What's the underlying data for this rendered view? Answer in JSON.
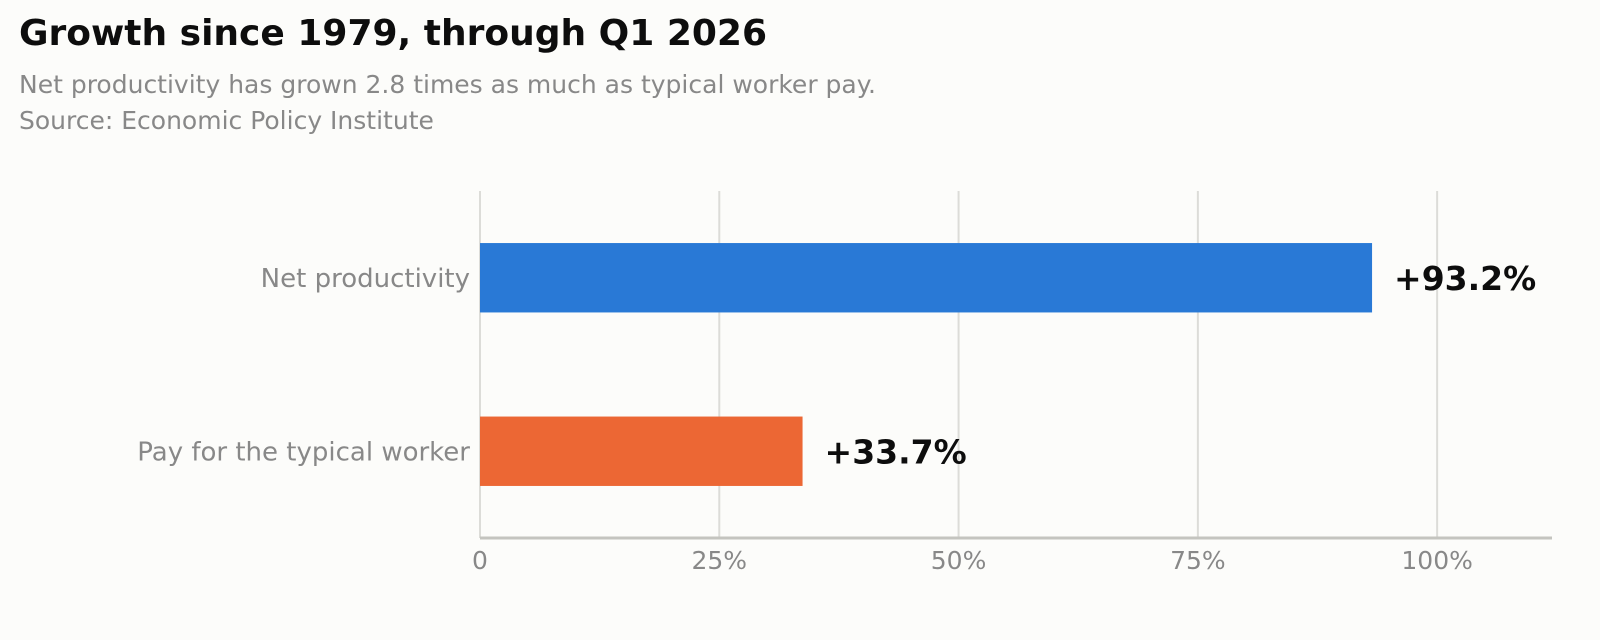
{
  "chart_data": {
    "type": "bar",
    "orientation": "horizontal",
    "title": "Growth since 1979, through Q1 2026",
    "subtitle": "Net productivity has grown 2.8 times as much as typical worker pay.",
    "source": "Source: Economic Policy Institute",
    "categories": [
      "Net productivity",
      "Pay for the typical worker"
    ],
    "values": [
      93.2,
      33.7
    ],
    "value_labels": [
      "+93.2%",
      "+33.7%"
    ],
    "colors": [
      "#2979d6",
      "#ec6734"
    ],
    "xlim": [
      0,
      112
    ],
    "x_ticks": [
      0,
      25,
      50,
      75,
      100
    ],
    "x_tick_labels": [
      "0",
      "25%",
      "50%",
      "75%",
      "100%"
    ],
    "grid": "vertical",
    "legend": "none"
  }
}
